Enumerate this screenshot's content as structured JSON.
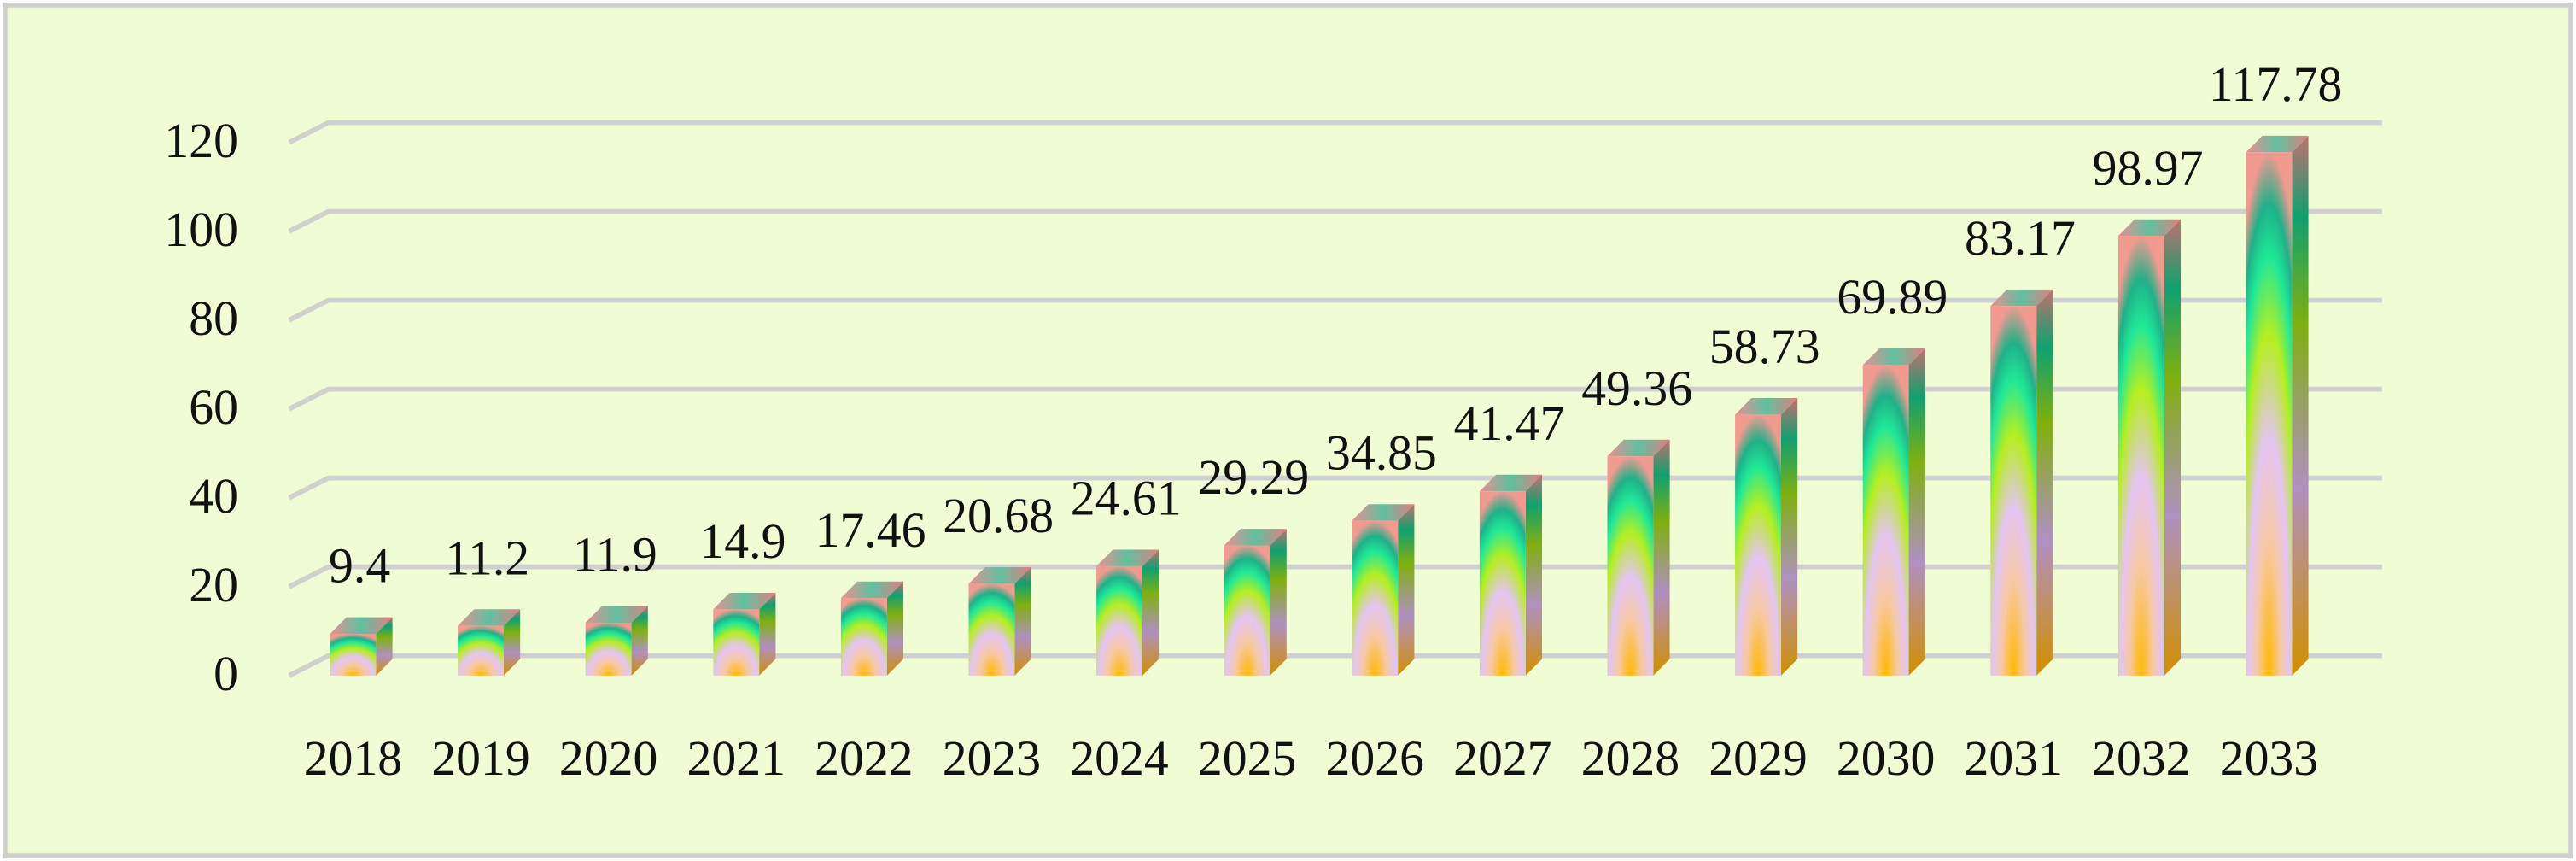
{
  "chart_data": {
    "type": "bar3d",
    "categories": [
      "2018",
      "2019",
      "2020",
      "2021",
      "2022",
      "2023",
      "2024",
      "2025",
      "2026",
      "2027",
      "2028",
      "2029",
      "2030",
      "2031",
      "2032",
      "2033"
    ],
    "values": [
      9.4,
      11.2,
      11.9,
      14.9,
      17.46,
      20.68,
      24.61,
      29.29,
      34.85,
      41.47,
      49.36,
      58.73,
      69.89,
      83.17,
      98.97,
      117.78
    ],
    "ylim": [
      0,
      120
    ],
    "yticks": [
      0,
      20,
      40,
      60,
      80,
      100,
      120
    ],
    "grid": true,
    "data_labels": true
  }
}
